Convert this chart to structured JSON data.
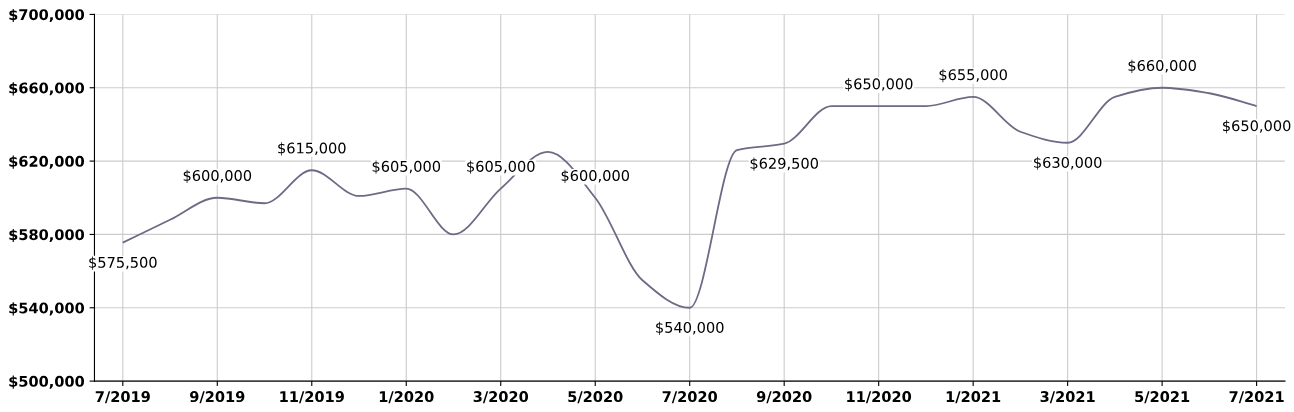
{
  "chart_data": {
    "type": "line",
    "categories": [
      "7/2019",
      null,
      "9/2019",
      null,
      "11/2019",
      null,
      "1/2020",
      null,
      "3/2020",
      null,
      "5/2020",
      null,
      "7/2020",
      null,
      "9/2020",
      null,
      "11/2020",
      null,
      "1/2021",
      null,
      "3/2021",
      null,
      "5/2021",
      null,
      "7/2021"
    ],
    "series": [
      {
        "color": "#6e6a86",
        "values": [
          575500,
          588000,
          600000,
          597000,
          615000,
          601000,
          605000,
          580000,
          605000,
          625000,
          600000,
          555000,
          540000,
          626000,
          629500,
          650000,
          650000,
          650000,
          655000,
          636000,
          630000,
          655000,
          660000,
          657000,
          650000
        ],
        "value_labels": [
          "$575,500",
          null,
          "$600,000",
          null,
          "$615,000",
          null,
          "$605,000",
          null,
          "$605,000",
          null,
          "$600,000",
          null,
          "$540,000",
          null,
          "$629,500",
          null,
          "$650,000",
          null,
          "$655,000",
          null,
          "$630,000",
          null,
          "$660,000",
          null,
          "$650,000"
        ]
      }
    ],
    "ylim": [
      500000,
      700000
    ],
    "yticks": [
      {
        "value": 500000,
        "label": "$500,000"
      },
      {
        "value": 540000,
        "label": "$540,000"
      },
      {
        "value": 580000,
        "label": "$580,000"
      },
      {
        "value": 620000,
        "label": "$620,000"
      },
      {
        "value": 660000,
        "label": "$660,000"
      },
      {
        "value": 700000,
        "label": "$700,000"
      }
    ],
    "grid": true,
    "marker": "none",
    "line_style": "solid",
    "legend": false
  }
}
